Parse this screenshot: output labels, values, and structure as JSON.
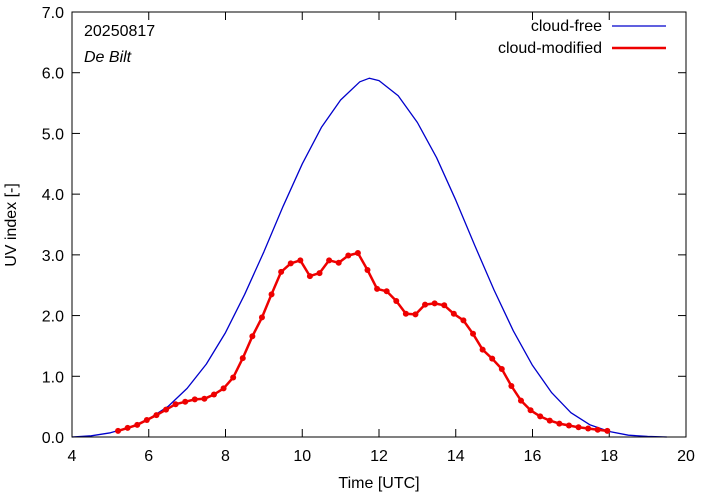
{
  "chart_data": {
    "type": "line",
    "date_label": "20250817",
    "location": "De Bilt",
    "xlabel": "Time  [UTC]",
    "ylabel": "UV index  [-]",
    "xlim": [
      4,
      20
    ],
    "ylim": [
      0,
      7
    ],
    "xticks": [
      4,
      6,
      8,
      10,
      12,
      14,
      16,
      18,
      20
    ],
    "xtick_labels": [
      "4",
      "6",
      "8",
      "10",
      "12",
      "14",
      "16",
      "18",
      "20"
    ],
    "yticks": [
      0,
      1,
      2,
      3,
      4,
      5,
      6,
      7
    ],
    "ytick_labels": [
      "0.0",
      "1.0",
      "2.0",
      "3.0",
      "4.0",
      "5.0",
      "6.0",
      "7.0"
    ],
    "grid": false,
    "legend_position": "top-right",
    "series": [
      {
        "name": "cloud-free",
        "color": "#0000cc",
        "markers": false,
        "x": [
          4.0,
          4.5,
          5.0,
          5.5,
          6.0,
          6.5,
          7.0,
          7.5,
          8.0,
          8.5,
          9.0,
          9.5,
          10.0,
          10.5,
          11.0,
          11.5,
          11.75,
          12.0,
          12.5,
          13.0,
          13.5,
          14.0,
          14.5,
          15.0,
          15.5,
          16.0,
          16.5,
          17.0,
          17.5,
          18.0,
          18.5,
          19.0,
          19.5
        ],
        "y": [
          0.0,
          0.02,
          0.07,
          0.16,
          0.3,
          0.5,
          0.8,
          1.2,
          1.72,
          2.35,
          3.05,
          3.8,
          4.5,
          5.1,
          5.55,
          5.85,
          5.91,
          5.87,
          5.62,
          5.18,
          4.6,
          3.9,
          3.15,
          2.42,
          1.75,
          1.18,
          0.73,
          0.4,
          0.2,
          0.09,
          0.03,
          0.01,
          0.0
        ]
      },
      {
        "name": "cloud-modified",
        "color": "#ee0000",
        "markers": true,
        "x": [
          5.2,
          5.45,
          5.7,
          5.95,
          6.2,
          6.45,
          6.7,
          6.95,
          7.2,
          7.45,
          7.7,
          7.95,
          8.2,
          8.45,
          8.7,
          8.95,
          9.2,
          9.45,
          9.7,
          9.95,
          10.2,
          10.45,
          10.7,
          10.95,
          11.2,
          11.45,
          11.7,
          11.95,
          12.2,
          12.45,
          12.7,
          12.95,
          13.2,
          13.45,
          13.7,
          13.95,
          14.2,
          14.45,
          14.7,
          14.95,
          15.2,
          15.45,
          15.7,
          15.95,
          16.2,
          16.45,
          16.7,
          16.95,
          17.2,
          17.45,
          17.7,
          17.95
        ],
        "y": [
          0.1,
          0.15,
          0.2,
          0.28,
          0.36,
          0.45,
          0.54,
          0.58,
          0.62,
          0.63,
          0.7,
          0.8,
          0.98,
          1.3,
          1.66,
          1.97,
          2.35,
          2.72,
          2.86,
          2.91,
          2.65,
          2.7,
          2.91,
          2.87,
          2.99,
          3.03,
          2.75,
          2.44,
          2.4,
          2.24,
          2.03,
          2.02,
          2.18,
          2.2,
          2.17,
          2.03,
          1.92,
          1.7,
          1.44,
          1.29,
          1.12,
          0.84,
          0.6,
          0.44,
          0.34,
          0.27,
          0.22,
          0.19,
          0.16,
          0.14,
          0.12,
          0.1
        ]
      }
    ]
  }
}
